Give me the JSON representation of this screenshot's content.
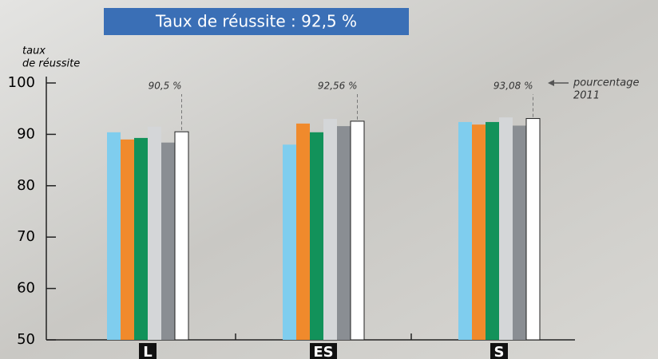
{
  "chart_data": {
    "type": "bar",
    "title": "Taux de réussite : 92,5 %",
    "y_label": [
      "taux",
      "de réussite"
    ],
    "annotation": [
      "pourcentage",
      "2011"
    ],
    "categories": [
      "L",
      "ES",
      "S"
    ],
    "series": [
      {
        "color": "#7fcdee",
        "values": [
          90.4,
          88.0,
          92.4
        ]
      },
      {
        "color": "#f08a2c",
        "values": [
          89.0,
          92.1,
          91.9
        ]
      },
      {
        "color": "#12925a",
        "values": [
          89.3,
          90.4,
          92.4
        ]
      },
      {
        "color": "#d4d6d8",
        "values": [
          91.5,
          93.0,
          93.3
        ]
      },
      {
        "color": "#8a8e93",
        "values": [
          88.4,
          91.6,
          91.7
        ]
      },
      {
        "color": "#ffffff",
        "values": [
          90.5,
          92.56,
          93.08
        ],
        "value_labels": [
          "90,5 %",
          "92,56 %",
          "93,08 %"
        ]
      }
    ],
    "ylim": [
      50,
      100
    ],
    "yticks": [
      50,
      60,
      70,
      80,
      90,
      100
    ]
  }
}
